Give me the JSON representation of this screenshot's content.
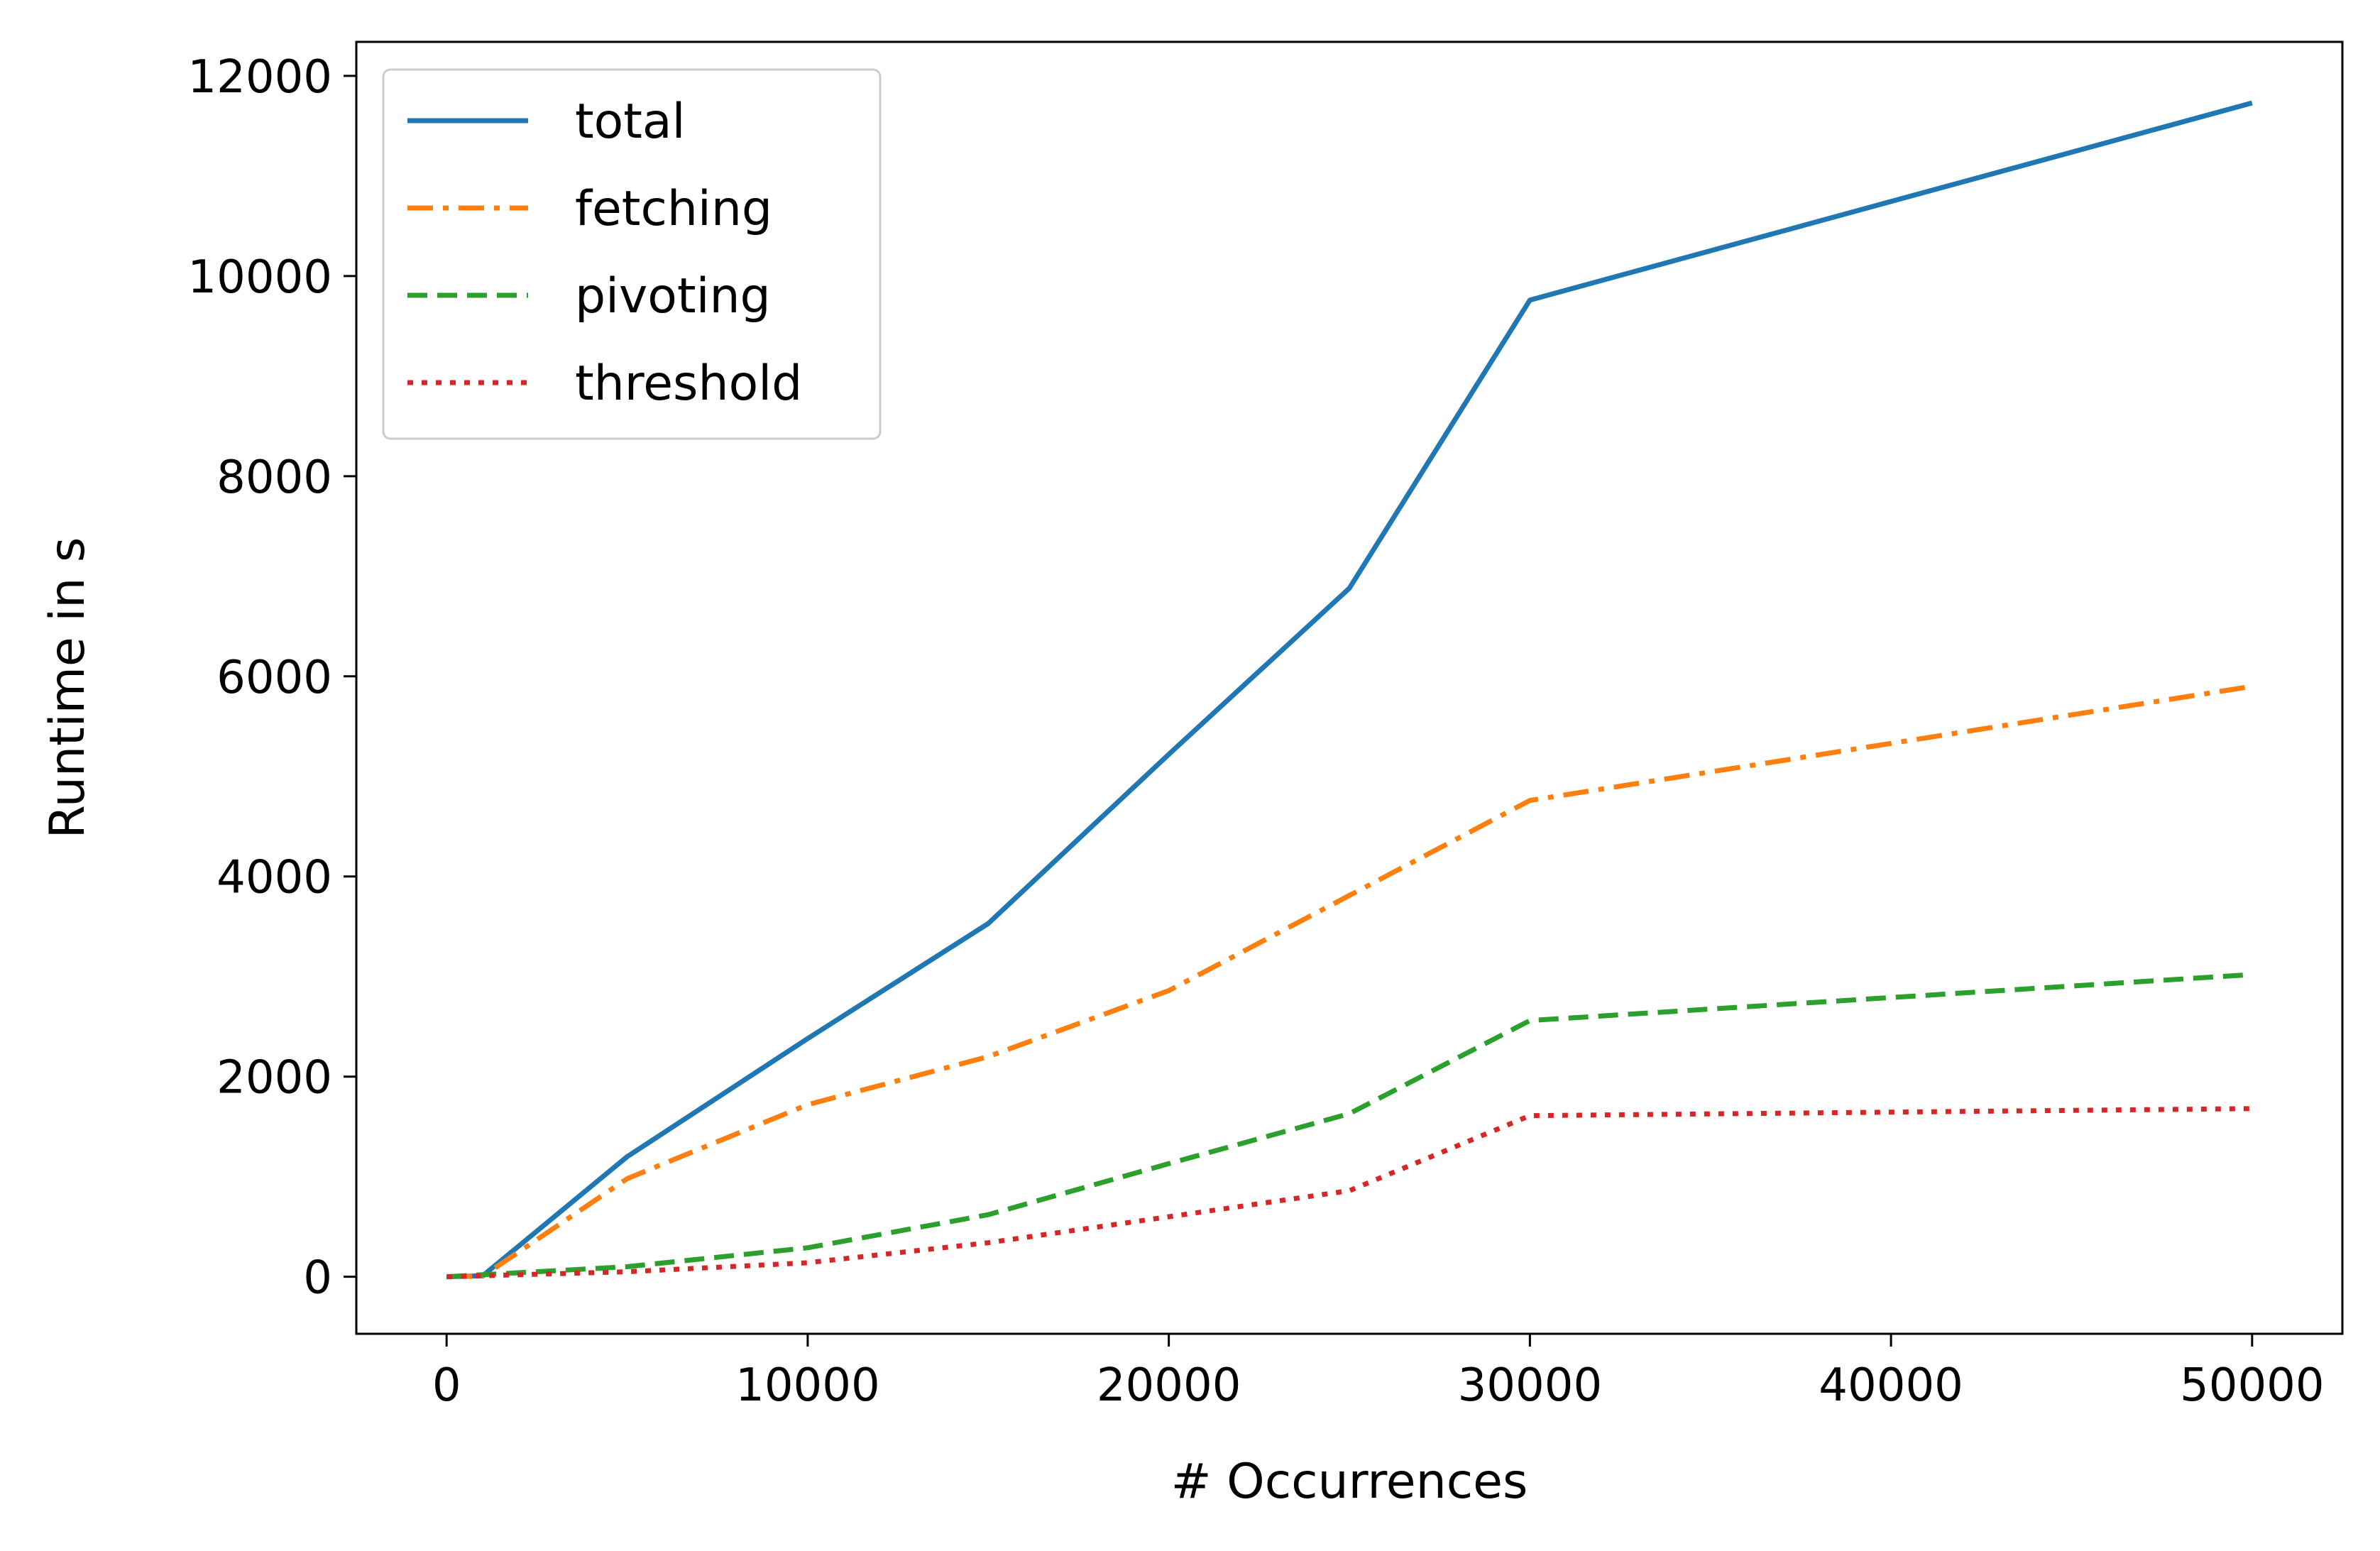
{
  "chart_data": {
    "type": "line",
    "xlabel": "# Occurrences",
    "ylabel": "Runtime in s",
    "xlim": [
      -2500,
      52500
    ],
    "ylim": [
      -570,
      12340
    ],
    "xticks": [
      0,
      10000,
      20000,
      30000,
      40000,
      50000
    ],
    "yticks": [
      0,
      2000,
      4000,
      6000,
      8000,
      10000,
      12000
    ],
    "xtick_labels": [
      "0",
      "10000",
      "20000",
      "30000",
      "40000",
      "50000"
    ],
    "ytick_labels": [
      "0",
      "2000",
      "4000",
      "6000",
      "8000",
      "10000",
      "12000"
    ],
    "grid": false,
    "legend_position": "top-left",
    "series": [
      {
        "name": "total",
        "color": "#1f77b4",
        "dash": "solid",
        "x": [
          0,
          1000,
          5000,
          10000,
          15000,
          20000,
          25000,
          30000,
          50000
        ],
        "y": [
          0,
          10,
          1200,
          2380,
          3530,
          5220,
          6880,
          9760,
          11730
        ]
      },
      {
        "name": "fetching",
        "color": "#ff7f0e",
        "dash": "dashdot",
        "x": [
          0,
          1000,
          5000,
          10000,
          15000,
          20000,
          25000,
          30000,
          50000
        ],
        "y": [
          0,
          5,
          980,
          1720,
          2200,
          2860,
          3810,
          4760,
          5900
        ]
      },
      {
        "name": "pivoting",
        "color": "#2ca02c",
        "dash": "dashed",
        "x": [
          0,
          1000,
          5000,
          10000,
          15000,
          20000,
          25000,
          30000,
          50000
        ],
        "y": [
          0,
          20,
          100,
          290,
          620,
          1130,
          1630,
          2560,
          3020
        ]
      },
      {
        "name": "threshold",
        "color": "#d62728",
        "dash": "dotted",
        "x": [
          0,
          1000,
          5000,
          10000,
          15000,
          20000,
          25000,
          30000,
          50000
        ],
        "y": [
          0,
          10,
          50,
          140,
          340,
          600,
          860,
          1610,
          1680
        ]
      }
    ]
  }
}
